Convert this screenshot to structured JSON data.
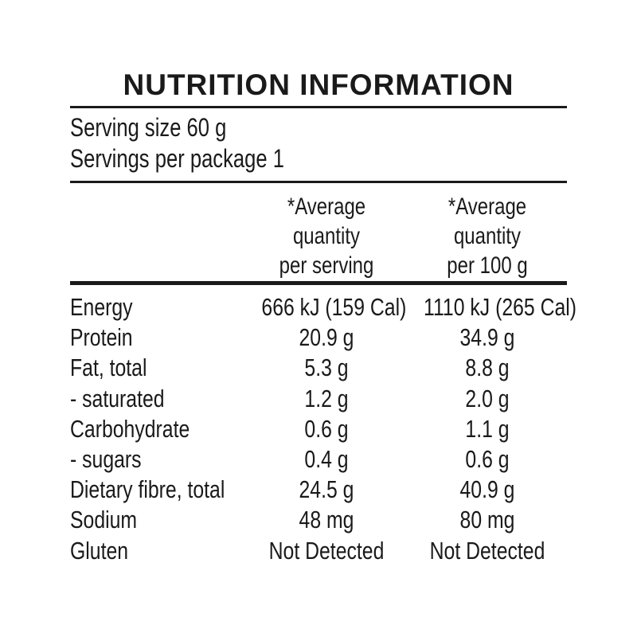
{
  "panel": {
    "title": "NUTRITION INFORMATION",
    "serving_size_line": "Serving size 60 g",
    "servings_per_package_line": "Servings per package 1",
    "column_headers": {
      "per_serving": "*Average\nquantity\nper serving",
      "per_100g": "*Average\nquantity\nper 100 g"
    },
    "rows": [
      {
        "label": "Energy",
        "per_serving": "666 kJ (159 Cal)",
        "per_100g": "1110 kJ (265 Cal)"
      },
      {
        "label": "Protein",
        "per_serving": "20.9 g",
        "per_100g": "34.9 g"
      },
      {
        "label": "Fat, total",
        "per_serving": "5.3 g",
        "per_100g": "8.8 g"
      },
      {
        "label": "- saturated",
        "per_serving": "1.2 g",
        "per_100g": "2.0 g"
      },
      {
        "label": "Carbohydrate",
        "per_serving": "0.6 g",
        "per_100g": "1.1 g"
      },
      {
        "label": "- sugars",
        "per_serving": "0.4 g",
        "per_100g": "0.6 g"
      },
      {
        "label": "Dietary fibre, total",
        "per_serving": "24.5 g",
        "per_100g": "40.9 g"
      },
      {
        "label": "Sodium",
        "per_serving": "48 mg",
        "per_100g": "80 mg"
      },
      {
        "label": "Gluten",
        "per_serving": "Not Detected",
        "per_100g": "Not Detected"
      }
    ]
  },
  "colors": {
    "background": "#ffffff",
    "text": "#1a1a1a",
    "rule": "#1a1a1a"
  }
}
